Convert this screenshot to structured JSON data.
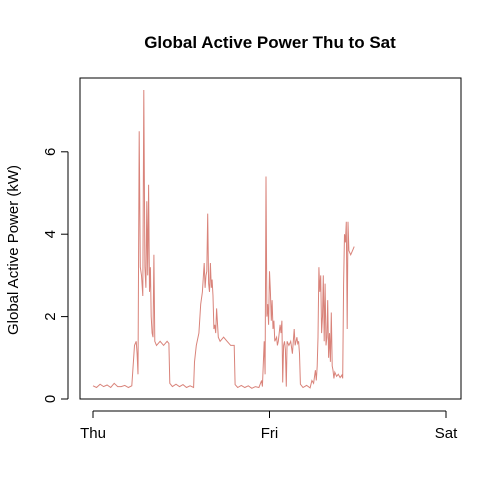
{
  "chart_data": {
    "type": "line",
    "title": "Global Active Power Thu to Sat",
    "xlabel": "",
    "ylabel": "Global Active Power (kW)",
    "xlim": [
      0,
      2
    ],
    "ylim": [
      0,
      7.5
    ],
    "x_ticks": [
      {
        "value": 0,
        "label": "Thu"
      },
      {
        "value": 1,
        "label": "Fri"
      },
      {
        "value": 2,
        "label": "Sat"
      }
    ],
    "y_ticks": [
      {
        "value": 0,
        "label": "0"
      },
      {
        "value": 2,
        "label": "2"
      },
      {
        "value": 4,
        "label": "4"
      },
      {
        "value": 6,
        "label": "6"
      }
    ],
    "grid": false,
    "series": [
      {
        "color": "#d9837a",
        "points": [
          [
            0.0,
            0.32
          ],
          [
            0.02,
            0.28
          ],
          [
            0.04,
            0.36
          ],
          [
            0.06,
            0.3
          ],
          [
            0.08,
            0.34
          ],
          [
            0.1,
            0.28
          ],
          [
            0.12,
            0.38
          ],
          [
            0.14,
            0.3
          ],
          [
            0.16,
            0.3
          ],
          [
            0.18,
            0.33
          ],
          [
            0.2,
            0.28
          ],
          [
            0.22,
            0.32
          ],
          [
            0.235,
            1.3
          ],
          [
            0.245,
            1.4
          ],
          [
            0.25,
            1.1
          ],
          [
            0.255,
            0.6
          ],
          [
            0.262,
            6.5
          ],
          [
            0.268,
            3.2
          ],
          [
            0.275,
            3.0
          ],
          [
            0.282,
            2.5
          ],
          [
            0.288,
            7.5
          ],
          [
            0.294,
            3.2
          ],
          [
            0.3,
            2.7
          ],
          [
            0.305,
            4.8
          ],
          [
            0.31,
            3.0
          ],
          [
            0.315,
            5.2
          ],
          [
            0.32,
            2.6
          ],
          [
            0.325,
            3.2
          ],
          [
            0.33,
            2.0
          ],
          [
            0.335,
            1.6
          ],
          [
            0.34,
            1.5
          ],
          [
            0.345,
            3.5
          ],
          [
            0.35,
            1.4
          ],
          [
            0.36,
            1.3
          ],
          [
            0.38,
            1.4
          ],
          [
            0.4,
            1.3
          ],
          [
            0.42,
            1.4
          ],
          [
            0.43,
            1.35
          ],
          [
            0.435,
            0.38
          ],
          [
            0.45,
            0.3
          ],
          [
            0.47,
            0.36
          ],
          [
            0.49,
            0.3
          ],
          [
            0.51,
            0.35
          ],
          [
            0.53,
            0.28
          ],
          [
            0.55,
            0.32
          ],
          [
            0.57,
            0.28
          ],
          [
            0.575,
            0.9
          ],
          [
            0.585,
            1.3
          ],
          [
            0.6,
            1.6
          ],
          [
            0.61,
            2.3
          ],
          [
            0.62,
            2.6
          ],
          [
            0.63,
            3.3
          ],
          [
            0.635,
            2.7
          ],
          [
            0.64,
            3.0
          ],
          [
            0.645,
            3.1
          ],
          [
            0.65,
            4.5
          ],
          [
            0.655,
            2.8
          ],
          [
            0.66,
            2.6
          ],
          [
            0.665,
            3.3
          ],
          [
            0.67,
            2.7
          ],
          [
            0.675,
            2.9
          ],
          [
            0.68,
            2.5
          ],
          [
            0.685,
            1.7
          ],
          [
            0.69,
            1.8
          ],
          [
            0.695,
            1.6
          ],
          [
            0.7,
            2.2
          ],
          [
            0.71,
            1.5
          ],
          [
            0.72,
            1.4
          ],
          [
            0.74,
            1.5
          ],
          [
            0.76,
            1.4
          ],
          [
            0.78,
            1.3
          ],
          [
            0.8,
            1.3
          ],
          [
            0.805,
            0.35
          ],
          [
            0.82,
            0.28
          ],
          [
            0.84,
            0.33
          ],
          [
            0.86,
            0.28
          ],
          [
            0.88,
            0.32
          ],
          [
            0.9,
            0.26
          ],
          [
            0.92,
            0.3
          ],
          [
            0.94,
            0.28
          ],
          [
            0.955,
            0.45
          ],
          [
            0.96,
            0.3
          ],
          [
            0.97,
            1.4
          ],
          [
            0.975,
            0.6
          ],
          [
            0.98,
            5.4
          ],
          [
            0.985,
            2.0
          ],
          [
            0.99,
            2.3
          ],
          [
            0.995,
            1.8
          ],
          [
            1.0,
            3.1
          ],
          [
            1.005,
            2.6
          ],
          [
            1.01,
            1.9
          ],
          [
            1.015,
            2.4
          ],
          [
            1.02,
            1.7
          ],
          [
            1.025,
            1.9
          ],
          [
            1.03,
            1.4
          ],
          [
            1.04,
            1.5
          ],
          [
            1.045,
            1.3
          ],
          [
            1.05,
            1.4
          ],
          [
            1.055,
            1.6
          ],
          [
            1.06,
            1.8
          ],
          [
            1.065,
            1.6
          ],
          [
            1.07,
            1.9
          ],
          [
            1.075,
            0.4
          ],
          [
            1.08,
            1.3
          ],
          [
            1.085,
            1.4
          ],
          [
            1.09,
            1.2
          ],
          [
            1.095,
            0.3
          ],
          [
            1.1,
            1.4
          ],
          [
            1.11,
            1.3
          ],
          [
            1.12,
            1.4
          ],
          [
            1.13,
            1.1
          ],
          [
            1.14,
            1.7
          ],
          [
            1.145,
            1.3
          ],
          [
            1.15,
            1.4
          ],
          [
            1.155,
            1.5
          ],
          [
            1.16,
            1.35
          ],
          [
            1.165,
            1.4
          ],
          [
            1.17,
            1.1
          ],
          [
            1.175,
            0.36
          ],
          [
            1.19,
            0.28
          ],
          [
            1.21,
            0.33
          ],
          [
            1.23,
            0.27
          ],
          [
            1.24,
            0.45
          ],
          [
            1.25,
            0.38
          ],
          [
            1.26,
            0.7
          ],
          [
            1.265,
            0.45
          ],
          [
            1.27,
            0.8
          ],
          [
            1.275,
            1.5
          ],
          [
            1.28,
            3.2
          ],
          [
            1.285,
            2.6
          ],
          [
            1.29,
            3.0
          ],
          [
            1.295,
            1.6
          ],
          [
            1.3,
            2.0
          ],
          [
            1.305,
            3.0
          ],
          [
            1.31,
            1.4
          ],
          [
            1.315,
            2.8
          ],
          [
            1.32,
            1.3
          ],
          [
            1.325,
            1.5
          ],
          [
            1.33,
            2.4
          ],
          [
            1.335,
            1.0
          ],
          [
            1.34,
            1.6
          ],
          [
            1.345,
            0.9
          ],
          [
            1.35,
            2.1
          ],
          [
            1.355,
            0.8
          ],
          [
            1.36,
            0.7
          ],
          [
            1.365,
            0.5
          ],
          [
            1.37,
            0.65
          ],
          [
            1.38,
            0.55
          ],
          [
            1.39,
            0.6
          ],
          [
            1.4,
            0.52
          ],
          [
            1.41,
            0.58
          ],
          [
            1.415,
            0.5
          ],
          [
            1.42,
            2.8
          ],
          [
            1.425,
            4.0
          ],
          [
            1.43,
            3.8
          ],
          [
            1.435,
            4.3
          ],
          [
            1.44,
            1.7
          ],
          [
            1.445,
            4.3
          ],
          [
            1.45,
            3.6
          ],
          [
            1.46,
            3.5
          ],
          [
            1.47,
            3.6
          ],
          [
            1.48,
            3.7
          ]
        ]
      }
    ]
  }
}
